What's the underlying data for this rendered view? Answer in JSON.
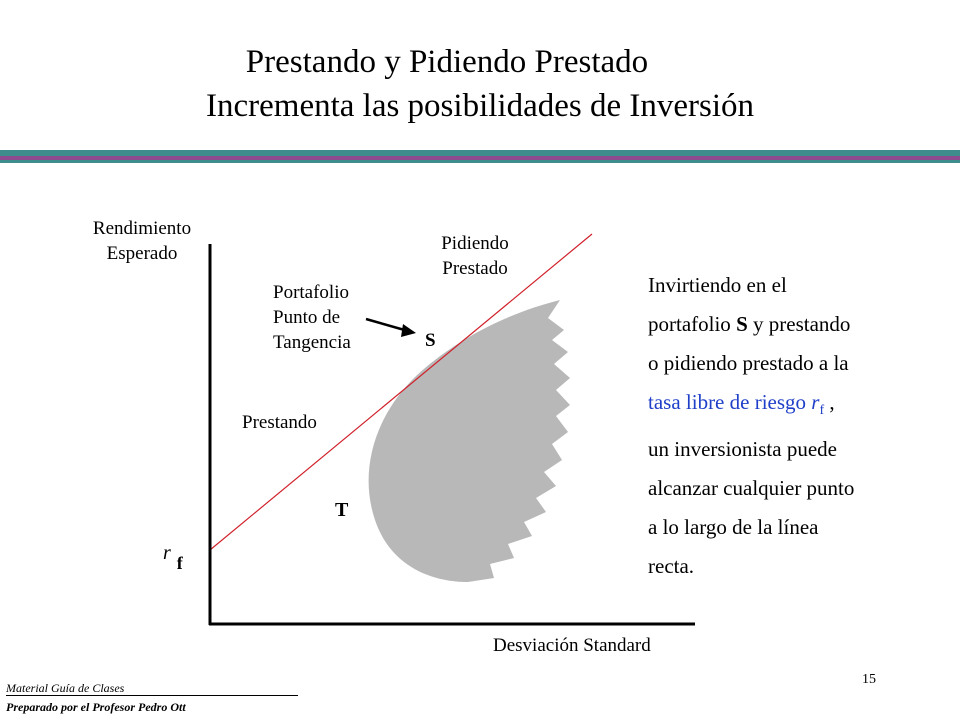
{
  "title": {
    "line1": "Prestando y Pidiendo Prestado",
    "line2": "Incrementa las posibilidades de Inversión"
  },
  "colors": {
    "bar_teal": "#3e8c8c",
    "bar_purple": "#8e4a8e",
    "cml_line": "#d0202a",
    "opportunity_set": "#b8b8b8",
    "highlight_text": "#1f3fc8"
  },
  "diagram": {
    "y_axis_label_line1": "Rendimiento",
    "y_axis_label_line2": "Esperado",
    "x_axis_label": "Desviación Standard",
    "label_borrowing_line1": "Pidiendo",
    "label_borrowing_line2": "Prestado",
    "label_tangency_line1": "Portafolio",
    "label_tangency_line2": "Punto de",
    "label_tangency_line3": "Tangencia",
    "point_s": "S",
    "point_t": "T",
    "label_lending": "Prestando",
    "rf_symbol": "r",
    "rf_subscript": "f"
  },
  "paragraph": {
    "line1": "Invirtiendo en el",
    "line2_pre": "portafolio ",
    "line2_bold": "S",
    "line2_post": " y prestando",
    "line3": "o pidiendo prestado a la",
    "line4_pre": "tasa libre de riesgo ",
    "line4_r": "r",
    "line4_sub": "f",
    "line4_post": " ,",
    "line5": "un inversionista puede",
    "line6": "alcanzar cualquier punto",
    "line7": "a lo largo de la línea",
    "line8": "recta."
  },
  "footer": {
    "line1": "Material Guía de Clases",
    "line2": "Preparado por el Profesor Pedro Ott"
  },
  "page_number": "15"
}
